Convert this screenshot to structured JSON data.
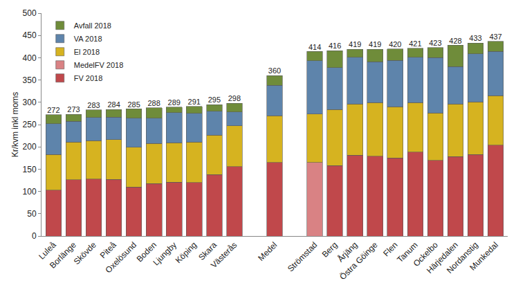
{
  "chart_data": {
    "type": "bar",
    "stacked": true,
    "y_label": "Kr/kvm inkl moms",
    "categories": [
      "Luleå",
      "Borlänge",
      "Skövde",
      "Piteå",
      "Oxelösund",
      "Boden",
      "Ljungby",
      "Köping",
      "Skara",
      "Västerås",
      null,
      "Medel",
      null,
      "Strömstad",
      "Berg",
      "Årjäng",
      "Östra Göinge",
      "Flen",
      "Tanum",
      "Ockelbo",
      "Härjedalen",
      "Nordanstig",
      "Munkedal"
    ],
    "series": [
      {
        "name": "FV 2018",
        "color": "#c0484b",
        "values": [
          103,
          126,
          128,
          127,
          110,
          118,
          121,
          120,
          138,
          156,
          null,
          165,
          null,
          null,
          158,
          181,
          179,
          175,
          188,
          170,
          178,
          183,
          204
        ]
      },
      {
        "name": "MedelFV 2018",
        "color": "#d98284",
        "values": [
          null,
          null,
          null,
          null,
          null,
          null,
          null,
          null,
          null,
          null,
          null,
          null,
          null,
          165,
          null,
          null,
          null,
          null,
          null,
          null,
          null,
          null,
          null
        ]
      },
      {
        "name": "El 2018",
        "color": "#d6b320",
        "values": [
          80,
          85,
          86,
          89,
          89,
          90,
          88,
          91,
          88,
          91,
          null,
          105,
          null,
          109,
          126,
          115,
          120,
          115,
          111,
          106,
          118,
          118,
          111
        ]
      },
      {
        "name": "VA 2018",
        "color": "#5e84ab",
        "values": [
          69,
          46,
          52,
          51,
          65,
          56,
          68,
          64,
          54,
          31,
          null,
          68,
          null,
          119,
          94,
          105,
          92,
          104,
          102,
          124,
          84,
          108,
          99
        ]
      },
      {
        "name": "Avfall 2018",
        "color": "#6f8c3a",
        "values": [
          20,
          16,
          17,
          17,
          21,
          24,
          12,
          16,
          15,
          20,
          null,
          22,
          null,
          21,
          38,
          18,
          28,
          26,
          20,
          23,
          48,
          24,
          23
        ]
      }
    ],
    "totals": [
      272,
      273,
      283,
      284,
      285,
      288,
      289,
      291,
      295,
      298,
      null,
      360,
      null,
      414,
      416,
      419,
      419,
      420,
      421,
      423,
      428,
      433,
      437
    ],
    "ylim": [
      0,
      500
    ],
    "yticks": [
      0,
      50,
      100,
      150,
      200,
      250,
      300,
      350,
      400,
      450,
      500
    ],
    "grid": false,
    "legend": "top left"
  }
}
